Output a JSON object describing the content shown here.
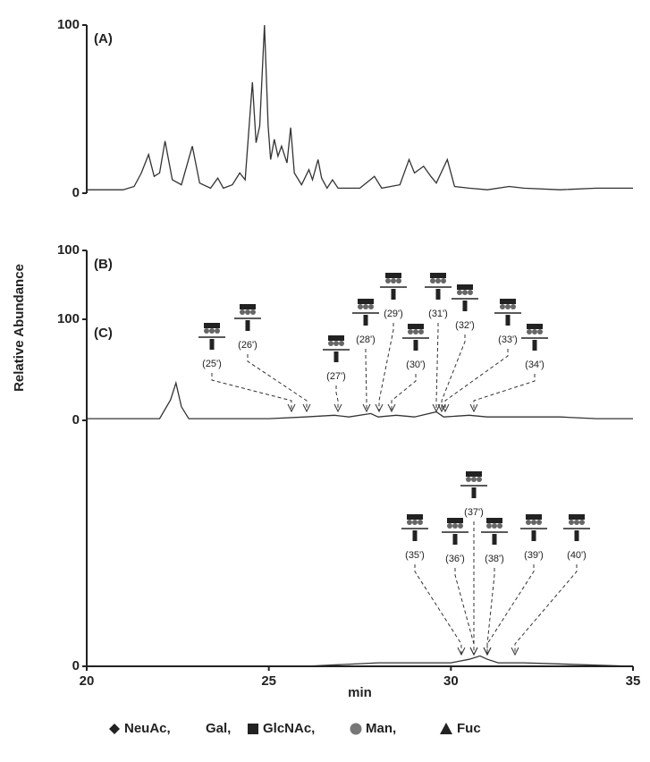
{
  "chart_data": [
    {
      "type": "line",
      "panel_label": "(A)",
      "color": "#333333",
      "ylim": [
        0,
        100
      ],
      "yticks": [
        0,
        100
      ],
      "x": [
        20,
        21,
        21.3,
        21.5,
        21.7,
        21.85,
        22.0,
        22.15,
        22.35,
        22.6,
        22.9,
        23.1,
        23.4,
        23.6,
        23.75,
        24.0,
        24.2,
        24.35,
        24.55,
        24.65,
        24.75,
        24.88,
        24.98,
        25.05,
        25.15,
        25.25,
        25.35,
        25.5,
        25.6,
        25.7,
        25.9,
        26.1,
        26.2,
        26.35,
        26.45,
        26.6,
        26.75,
        26.9,
        27.5,
        27.9,
        28.1,
        28.6,
        28.85,
        29.0,
        29.25,
        29.45,
        29.6,
        29.9,
        30.1,
        30.5,
        31.0,
        31.6,
        32,
        33,
        34,
        35
      ],
      "values": [
        2,
        2,
        4,
        12,
        23,
        10,
        12,
        31,
        8,
        5,
        28,
        6,
        3,
        9,
        3,
        5,
        12,
        8,
        66,
        30,
        40,
        100,
        40,
        20,
        32,
        22,
        28,
        18,
        39,
        12,
        5,
        14,
        8,
        20,
        9,
        3,
        8,
        3,
        3,
        10,
        3,
        5,
        20,
        12,
        16,
        10,
        6,
        20,
        4,
        3,
        2,
        4,
        3,
        2,
        3,
        3
      ]
    },
    {
      "type": "line",
      "panel_label": "(B)",
      "color": "#333333",
      "ylim": [
        0,
        100
      ],
      "yticks": [
        0,
        100
      ],
      "ylabel": "Relative Abundance",
      "x": [
        20,
        21,
        22.0,
        22.3,
        22.45,
        22.6,
        22.8,
        24,
        25,
        26,
        26.8,
        27.2,
        27.8,
        28,
        28.5,
        29,
        29.6,
        29.8,
        30.5,
        31,
        32,
        33,
        34,
        35
      ],
      "values": [
        1,
        1,
        1,
        12,
        22,
        8,
        1,
        1,
        1,
        2,
        3,
        2,
        4,
        2,
        3,
        2,
        5,
        2,
        3,
        2,
        2,
        2,
        1,
        1
      ],
      "annotations": [
        "(25')",
        "(26')",
        "(27')",
        "(28')",
        "(29')",
        "(30')",
        "(31')",
        "(32')",
        "(33')",
        "(34')"
      ]
    },
    {
      "type": "line",
      "panel_label": "(C)",
      "color": "#333333",
      "ylim": [
        0,
        100
      ],
      "yticks": [
        0,
        100
      ],
      "xlabel": "min",
      "xlim": [
        20,
        35
      ],
      "xticks": [
        20,
        25,
        30,
        35
      ],
      "x": [
        20,
        26,
        28,
        29,
        30,
        30.5,
        30.8,
        31,
        31.3,
        32,
        35
      ],
      "values": [
        0,
        0,
        1,
        1,
        1,
        2,
        3,
        2,
        1,
        1,
        0
      ],
      "annotations": [
        "(35')",
        "(36')",
        "(37')",
        "(38')",
        "(39')",
        "(40')"
      ]
    }
  ],
  "legend": [
    "NeuAc,",
    "Gal,",
    "GlcNAc,",
    "Man,",
    "Fuc"
  ]
}
